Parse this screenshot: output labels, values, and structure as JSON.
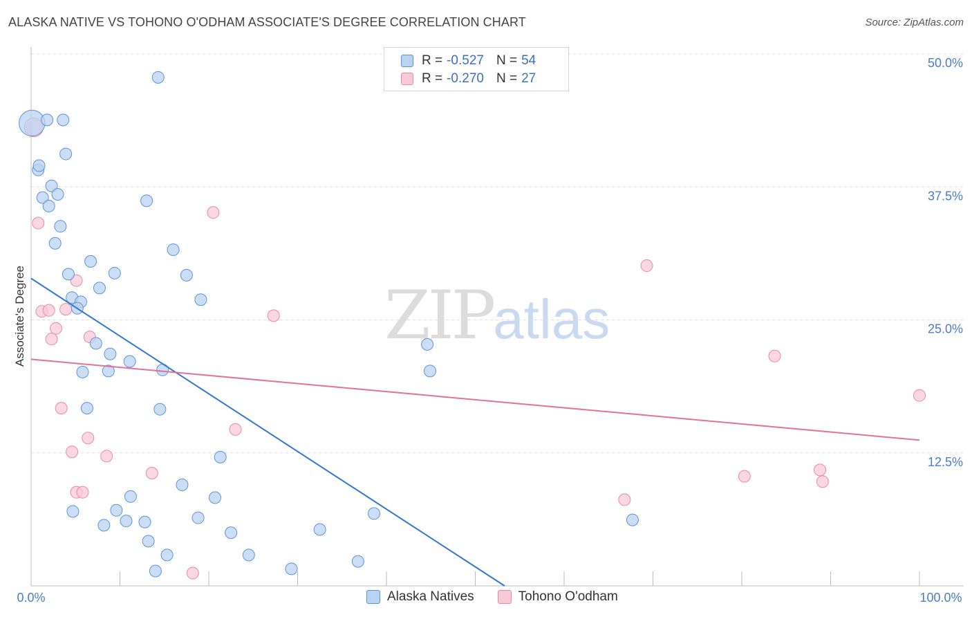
{
  "title": "ALASKA NATIVE VS TOHONO O'ODHAM ASSOCIATE'S DEGREE CORRELATION CHART",
  "source": "Source: ZipAtlas.com",
  "watermark": {
    "zip": "ZIP",
    "atlas": "atlas"
  },
  "legend": {
    "rows": [
      {
        "r_label": "R =",
        "r_value": "-0.527",
        "n_label": "N =",
        "n_value": "54"
      },
      {
        "r_label": "R =",
        "r_value": "-0.270",
        "n_label": "N =",
        "n_value": "27"
      }
    ]
  },
  "bottom_legend": [
    "Alaska Natives",
    "Tohono O'odham"
  ],
  "colors": {
    "blue_fill": "#b9d3f2",
    "blue_edge": "#5d93d8",
    "blue_line": "#2f77d4",
    "pink_fill": "#f8c9d7",
    "pink_edge": "#e88aa6",
    "pink_line": "#e4709a",
    "grid": "#dddddd",
    "axis": "#bbbbbb"
  },
  "chart_data": {
    "type": "scatter",
    "title": "ALASKA NATIVE VS TOHONO O'ODHAM ASSOCIATE'S DEGREE CORRELATION CHART",
    "xlabel": "",
    "ylabel": "Associate's Degree",
    "xlim": [
      0,
      100
    ],
    "ylim": [
      0,
      50
    ],
    "x_tick_labels": [
      "0.0%",
      "100.0%"
    ],
    "y_ticks": [
      12.5,
      25.0,
      37.5,
      50.0
    ],
    "y_tick_labels": [
      "12.5%",
      "25.0%",
      "37.5%",
      "50.0%"
    ],
    "series": [
      {
        "name": "Alaska Natives",
        "r": -0.527,
        "n": 54,
        "trend": {
          "x": [
            0,
            53.3
          ],
          "y": [
            28.9,
            0
          ]
        },
        "points": [
          [
            0.1,
            43.5,
            2.2
          ],
          [
            14.3,
            47.8,
            1
          ],
          [
            1.8,
            43.8,
            1
          ],
          [
            3.6,
            43.8,
            1
          ],
          [
            3.9,
            40.6,
            1
          ],
          [
            0.8,
            39.1,
            1
          ],
          [
            0.9,
            39.5,
            1
          ],
          [
            2.3,
            37.6,
            1
          ],
          [
            3.0,
            36.8,
            1
          ],
          [
            1.3,
            36.5,
            1
          ],
          [
            2.0,
            35.7,
            1
          ],
          [
            13.0,
            36.2,
            1
          ],
          [
            3.3,
            33.8,
            1
          ],
          [
            2.7,
            32.2,
            1
          ],
          [
            16.0,
            31.6,
            1
          ],
          [
            6.7,
            30.5,
            1
          ],
          [
            4.2,
            29.3,
            1
          ],
          [
            9.4,
            29.4,
            1
          ],
          [
            17.5,
            29.2,
            1
          ],
          [
            7.7,
            28.0,
            1
          ],
          [
            4.6,
            27.1,
            1
          ],
          [
            5.6,
            26.7,
            1
          ],
          [
            19.1,
            26.9,
            1
          ],
          [
            5.2,
            26.1,
            1
          ],
          [
            7.3,
            22.8,
            1
          ],
          [
            8.9,
            21.8,
            1
          ],
          [
            11.1,
            21.1,
            1
          ],
          [
            14.8,
            20.3,
            1
          ],
          [
            5.8,
            20.1,
            1
          ],
          [
            8.7,
            20.2,
            1
          ],
          [
            44.6,
            22.7,
            1
          ],
          [
            44.9,
            20.2,
            1
          ],
          [
            6.3,
            16.7,
            1
          ],
          [
            14.5,
            16.6,
            1
          ],
          [
            21.3,
            12.1,
            1
          ],
          [
            17.0,
            9.5,
            1
          ],
          [
            11.2,
            8.4,
            1
          ],
          [
            20.7,
            8.3,
            1
          ],
          [
            4.7,
            7.0,
            1
          ],
          [
            9.6,
            7.1,
            1
          ],
          [
            18.8,
            6.4,
            1
          ],
          [
            10.7,
            6.1,
            1
          ],
          [
            12.8,
            6.0,
            1
          ],
          [
            8.2,
            5.7,
            1
          ],
          [
            22.5,
            5.0,
            1
          ],
          [
            32.5,
            5.3,
            1
          ],
          [
            38.6,
            6.8,
            1
          ],
          [
            67.7,
            6.2,
            1
          ],
          [
            13.2,
            4.2,
            1
          ],
          [
            15.3,
            2.9,
            1
          ],
          [
            24.5,
            2.9,
            1
          ],
          [
            36.8,
            2.3,
            1
          ],
          [
            29.3,
            1.6,
            1
          ],
          [
            14.0,
            1.4,
            1
          ]
        ]
      },
      {
        "name": "Tohono O'odham",
        "r": -0.27,
        "n": 27,
        "trend": {
          "x": [
            0,
            100
          ],
          "y": [
            21.3,
            13.7
          ]
        },
        "points": [
          [
            0.3,
            43.1,
            1.6
          ],
          [
            20.5,
            35.1,
            1
          ],
          [
            0.8,
            34.1,
            1
          ],
          [
            69.3,
            30.1,
            1
          ],
          [
            5.1,
            28.7,
            1
          ],
          [
            1.2,
            25.8,
            1
          ],
          [
            2.0,
            25.9,
            1
          ],
          [
            3.9,
            26.0,
            1
          ],
          [
            27.3,
            25.4,
            1
          ],
          [
            2.8,
            24.2,
            1
          ],
          [
            2.3,
            23.2,
            1
          ],
          [
            6.6,
            23.4,
            1
          ],
          [
            83.7,
            21.6,
            1
          ],
          [
            100.0,
            17.9,
            1
          ],
          [
            3.4,
            16.7,
            1
          ],
          [
            23.0,
            14.7,
            1
          ],
          [
            6.4,
            13.9,
            1
          ],
          [
            4.6,
            12.6,
            1
          ],
          [
            8.5,
            12.2,
            1
          ],
          [
            13.6,
            10.6,
            1
          ],
          [
            80.3,
            10.3,
            1
          ],
          [
            88.8,
            10.9,
            1
          ],
          [
            89.1,
            9.8,
            1
          ],
          [
            5.1,
            8.8,
            1
          ],
          [
            5.8,
            8.8,
            1
          ],
          [
            66.8,
            8.1,
            1
          ],
          [
            18.2,
            1.2,
            1
          ]
        ]
      }
    ]
  }
}
